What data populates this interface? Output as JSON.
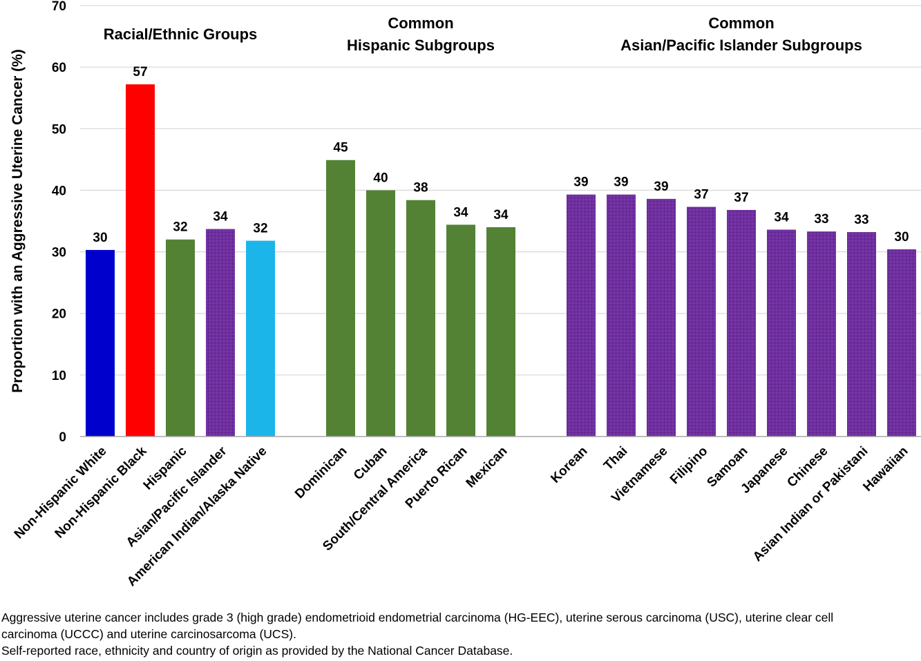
{
  "chart_data": {
    "type": "bar",
    "ylabel": "Proportion with an Aggressive Uterine Cancer (%)",
    "ylim": [
      0,
      70
    ],
    "yticks": [
      0,
      10,
      20,
      30,
      40,
      50,
      60,
      70
    ],
    "grid": true,
    "colors": {
      "white": "#0000CC",
      "black": "#FF0000",
      "green": "#548235",
      "purple": "#7030A0",
      "lightblue": "#1CB5EA",
      "gridline": "#D9D9D9",
      "baseline": "#A6A6A6"
    },
    "groups": [
      {
        "title": [
          "Racial/Ethnic Groups"
        ],
        "bars": [
          {
            "category": "Non-Hispanic White",
            "value": 30.3,
            "label": "30",
            "color": "#0000CC"
          },
          {
            "category": "Non-Hispanic Black",
            "value": 57.2,
            "label": "57",
            "color": "#FF0000"
          },
          {
            "category": "Hispanic",
            "value": 32.0,
            "label": "32",
            "color": "#548235"
          },
          {
            "category": "Asian/Pacific Islander",
            "value": 33.7,
            "label": "34",
            "color": "#7030A0",
            "pattern": true
          },
          {
            "category": "American Indian/Alaska Native",
            "value": 31.8,
            "label": "32",
            "color": "#1CB5EA"
          }
        ]
      },
      {
        "title": [
          "Common",
          "Hispanic Subgroups"
        ],
        "bars": [
          {
            "category": "Dominican",
            "value": 44.9,
            "label": "45",
            "color": "#548235"
          },
          {
            "category": "Cuban",
            "value": 40.0,
            "label": "40",
            "color": "#548235"
          },
          {
            "category": "South/Central America",
            "value": 38.4,
            "label": "38",
            "color": "#548235"
          },
          {
            "category": "Puerto Rican",
            "value": 34.4,
            "label": "34",
            "color": "#548235"
          },
          {
            "category": "Mexican",
            "value": 34.0,
            "label": "34",
            "color": "#548235"
          }
        ]
      },
      {
        "title": [
          "Common",
          "Asian/Pacific Islander Subgroups"
        ],
        "bars": [
          {
            "category": "Korean",
            "value": 39.3,
            "label": "39",
            "color": "#7030A0",
            "pattern": true
          },
          {
            "category": "Thai",
            "value": 39.3,
            "label": "39",
            "color": "#7030A0",
            "pattern": true
          },
          {
            "category": "Vietnamese",
            "value": 38.6,
            "label": "39",
            "color": "#7030A0",
            "pattern": true
          },
          {
            "category": "Filipino",
            "value": 37.3,
            "label": "37",
            "color": "#7030A0",
            "pattern": true
          },
          {
            "category": "Samoan",
            "value": 36.8,
            "label": "37",
            "color": "#7030A0",
            "pattern": true
          },
          {
            "category": "Japanese",
            "value": 33.6,
            "label": "34",
            "color": "#7030A0",
            "pattern": true
          },
          {
            "category": "Chinese",
            "value": 33.3,
            "label": "33",
            "color": "#7030A0",
            "pattern": true
          },
          {
            "category": "Asian Indian or Pakistani",
            "value": 33.2,
            "label": "33",
            "color": "#7030A0",
            "pattern": true
          },
          {
            "category": "Hawaiian",
            "value": 30.4,
            "label": "30",
            "color": "#7030A0",
            "pattern": true
          }
        ]
      }
    ]
  },
  "footnotes": {
    "line1": "Aggressive uterine cancer includes grade 3 (high grade) endometrioid endometrial carcinoma (HG-EEC), uterine serous carcinoma (USC), uterine clear cell",
    "line2": "carcinoma (UCCC) and uterine carcinosarcoma (UCS).",
    "line3": "Self-reported race, ethnicity and country of origin as provided by the National Cancer Database."
  }
}
